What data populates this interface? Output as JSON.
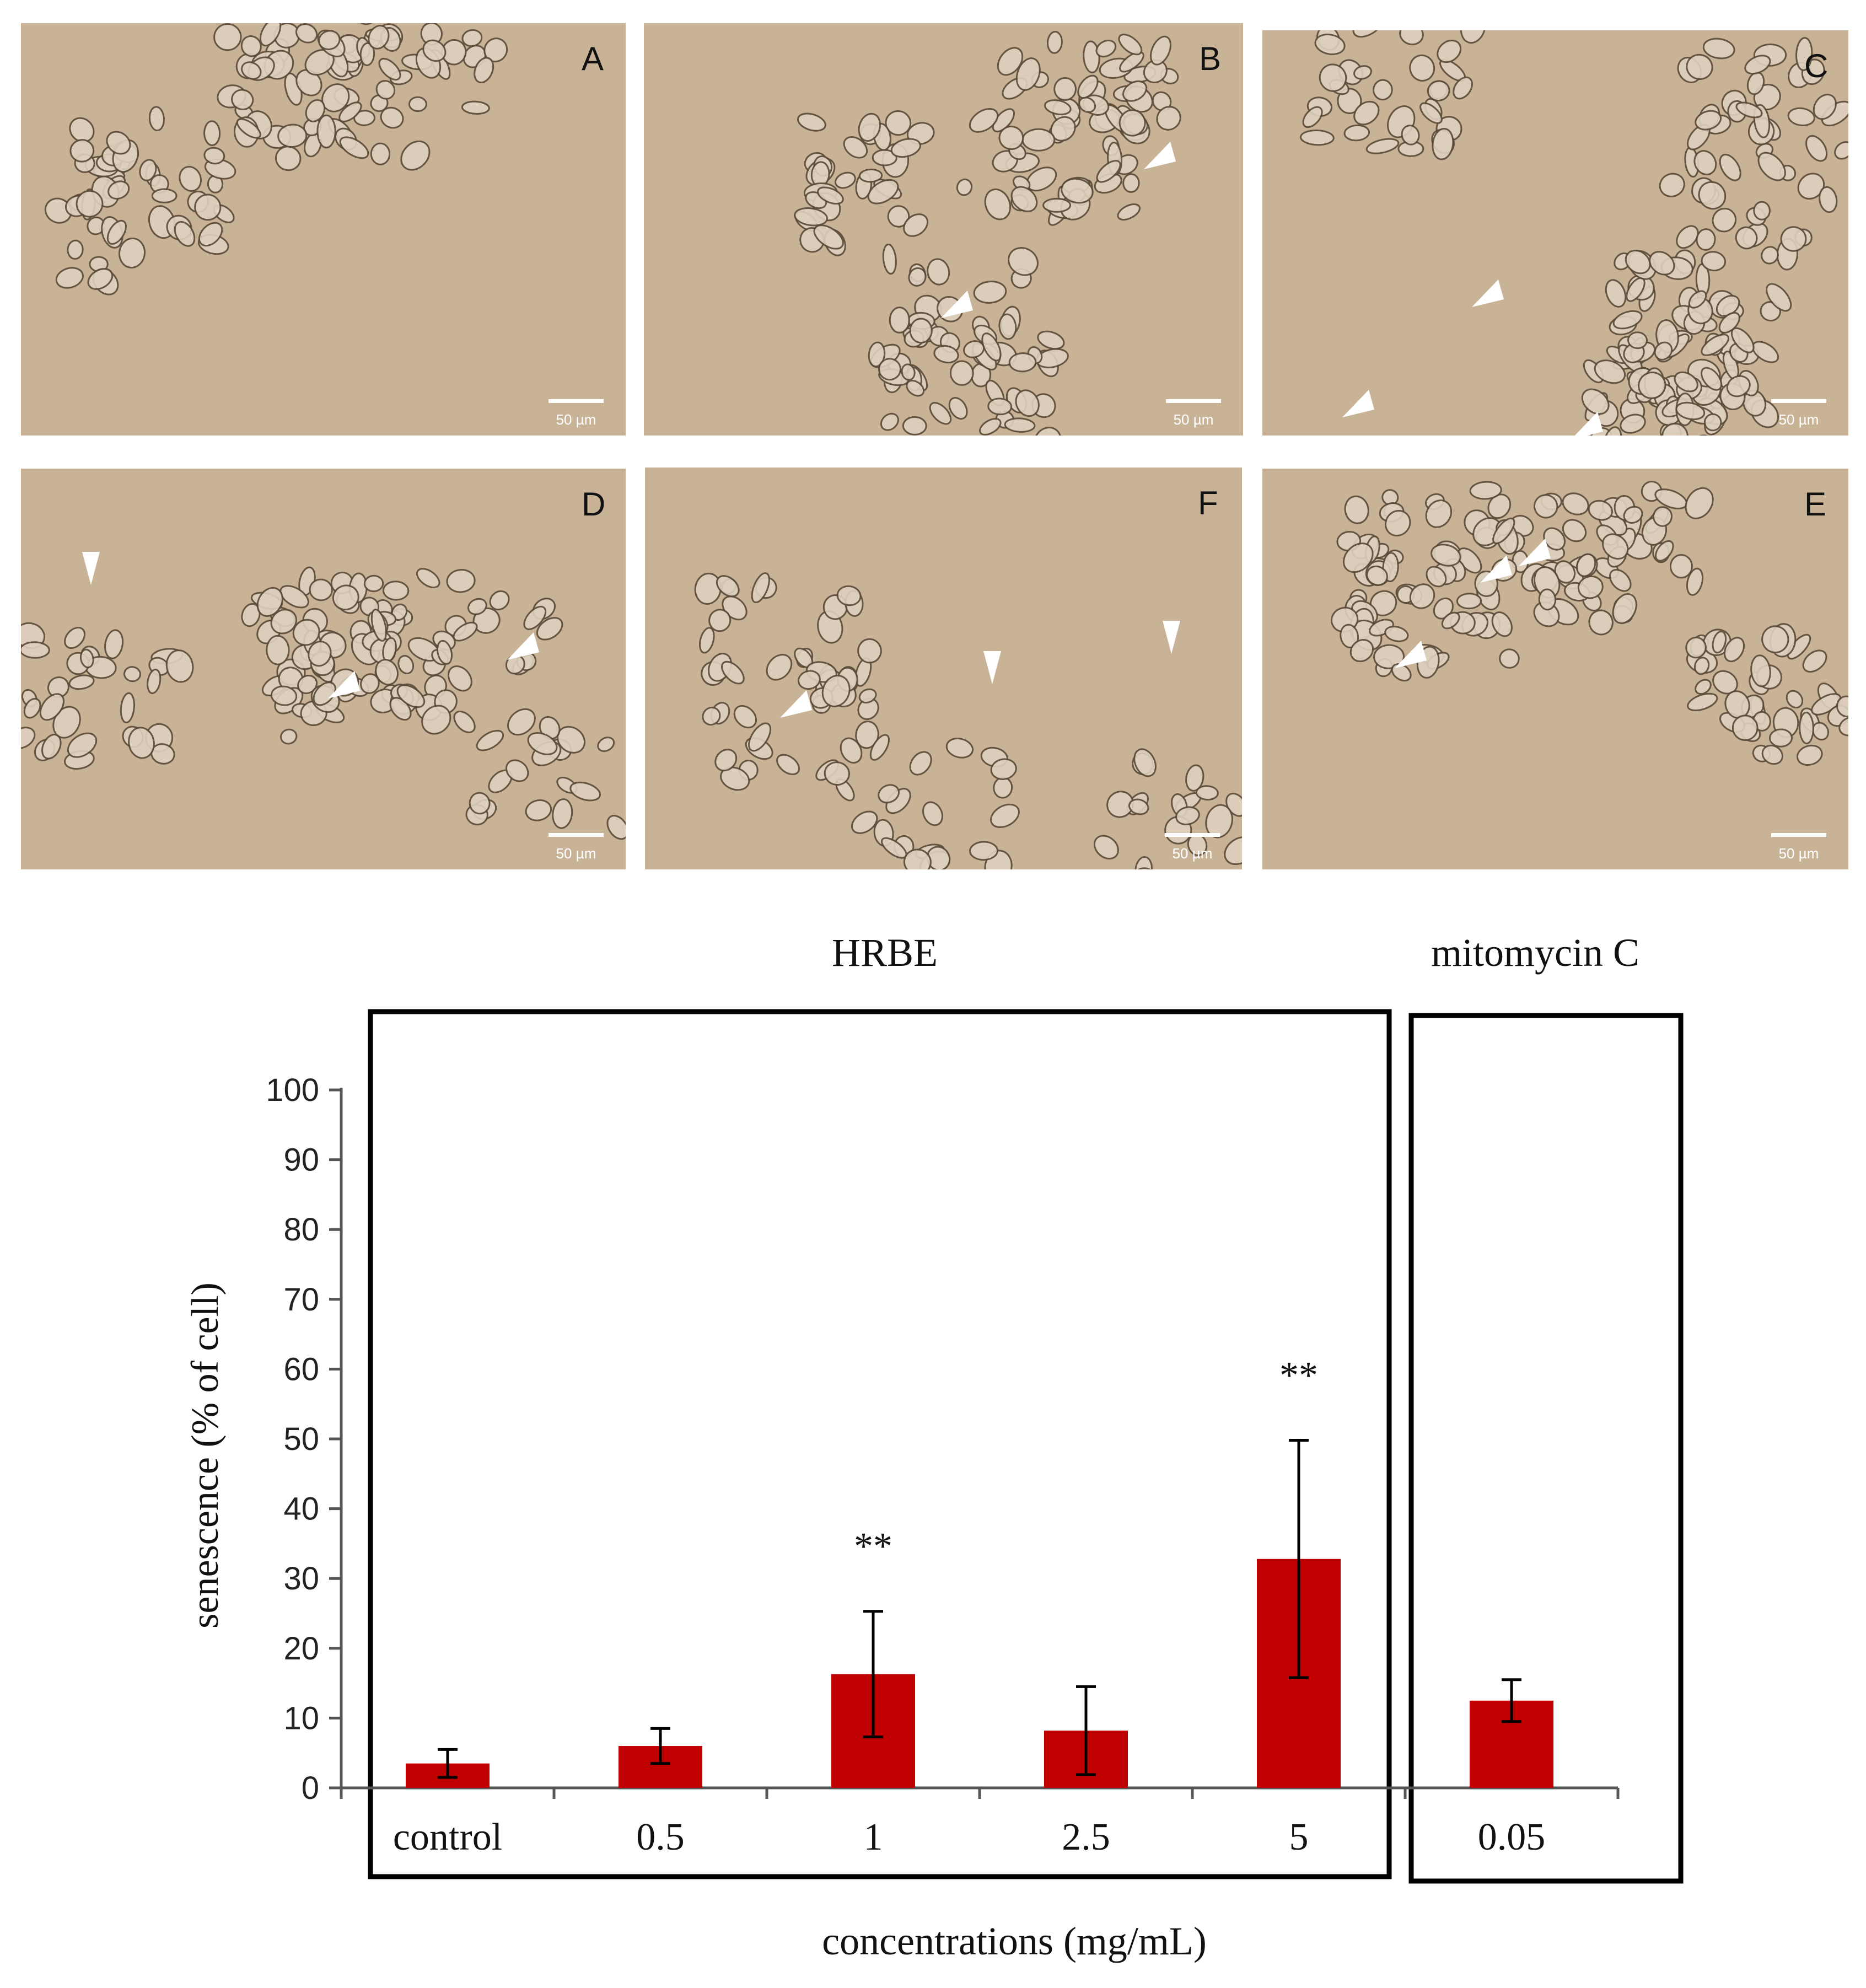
{
  "panels": [
    {
      "label": "A",
      "scale_bar": "50 µm"
    },
    {
      "label": "B",
      "scale_bar": "50 µm"
    },
    {
      "label": "C",
      "scale_bar": "50 µm"
    },
    {
      "label": "D",
      "scale_bar": "50 µm"
    },
    {
      "label": "F",
      "scale_bar": "50 µm"
    },
    {
      "label": "E",
      "scale_bar": "50 µm"
    }
  ],
  "colors": {
    "micrograph_bg": "#c9b396",
    "cell_fill": "#ddd0bd",
    "cell_edge": "#5a4a38",
    "arrow": "#ffffff",
    "bar": "#c00000",
    "frame": "#000000"
  },
  "chart_data": {
    "type": "bar",
    "groups": [
      {
        "label": "HRBE",
        "categories": [
          "control",
          "0.5",
          "1",
          "2.5",
          "5"
        ]
      },
      {
        "label": "mitomycin C",
        "categories": [
          "0.05"
        ]
      }
    ],
    "categories": [
      "control",
      "0.5",
      "1",
      "2.5",
      "5",
      "0.05"
    ],
    "values": [
      3.5,
      6,
      16.3,
      8.2,
      32.8,
      12.5
    ],
    "errors": [
      2,
      2.5,
      9,
      6.3,
      17,
      3
    ],
    "annotations": [
      "",
      "",
      "**",
      "",
      "**",
      ""
    ],
    "xlabel": "concentrations (mg/mL)",
    "ylabel": "senescence (% of cell)",
    "ylim": [
      0,
      100
    ],
    "yticks": [
      "0",
      "10",
      "20",
      "30",
      "40",
      "50",
      "60",
      "70",
      "80",
      "90",
      "100"
    ],
    "grid": false
  }
}
